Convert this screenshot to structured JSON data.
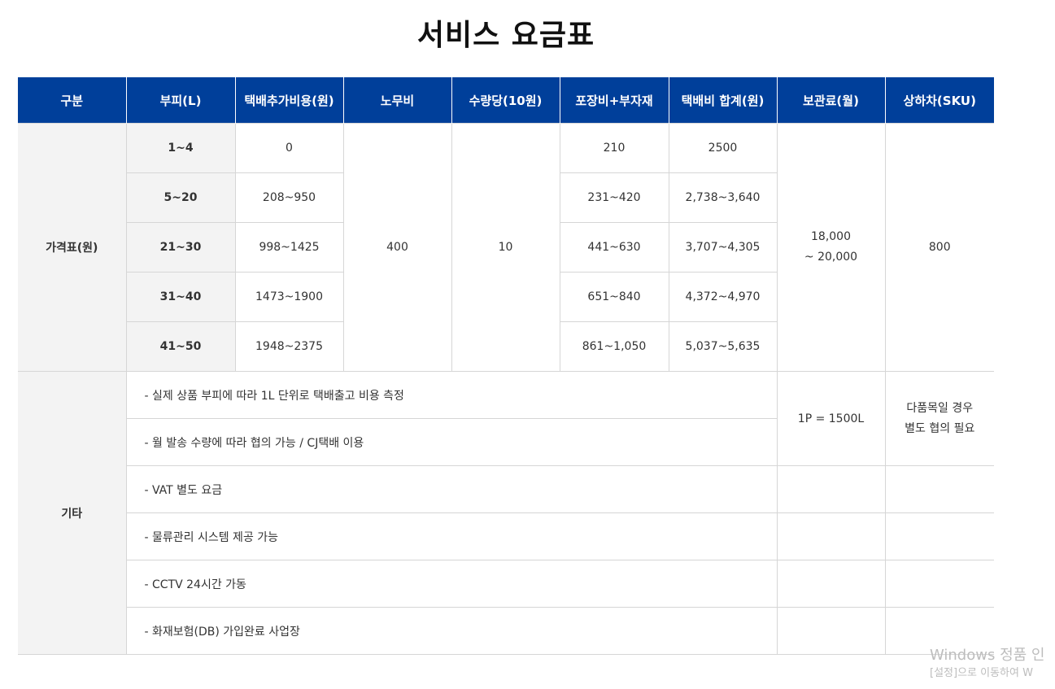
{
  "page": {
    "title": "서비스 요금표"
  },
  "table": {
    "headers": [
      "구분",
      "부피(L)",
      "택배추가비용(원)",
      "노무비",
      "수량당(10원)",
      "포장비+부자재",
      "택배비 합계(원)",
      "보관료(월)",
      "상하차(SKU)"
    ],
    "price_section": {
      "label": "가격표(원)",
      "rows": [
        {
          "volume": "1~4",
          "extra_cost": "0",
          "packaging": "210",
          "total": "2500"
        },
        {
          "volume": "5~20",
          "extra_cost": "208~950",
          "packaging": "231~420",
          "total": "2,738~3,640"
        },
        {
          "volume": "21~30",
          "extra_cost": "998~1425",
          "packaging": "441~630",
          "total": "3,707~4,305"
        },
        {
          "volume": "31~40",
          "extra_cost": "1473~1900",
          "packaging": "651~840",
          "total": "4,372~4,970"
        },
        {
          "volume": "41~50",
          "extra_cost": "1948~2375",
          "packaging": "861~1,050",
          "total": "5,037~5,635"
        }
      ],
      "labor": "400",
      "per_quantity": "10",
      "storage_line1": "18,000",
      "storage_line2": "~ 20,000",
      "loading": "800"
    },
    "other_section": {
      "label": "기타",
      "notes": [
        "- 실제 상품 부피에 따라 1L 단위로 택배출고 비용 측정",
        "- 월 발송 수량에 따라 협의 가능 / CJ택배 이용",
        "- VAT 별도 요금",
        "- 물류관리 시스템 제공 가능",
        "- CCTV 24시간 가동",
        "- 화재보험(DB) 가입완료 사업장"
      ],
      "storage_unit": "1P = 1500L",
      "loading_note_line1": "다품목일 경우",
      "loading_note_line2": "별도 협의 필요"
    }
  },
  "watermark": {
    "line1": "Windows 정품 인",
    "line2": "[설정]으로 이동하여 W"
  }
}
